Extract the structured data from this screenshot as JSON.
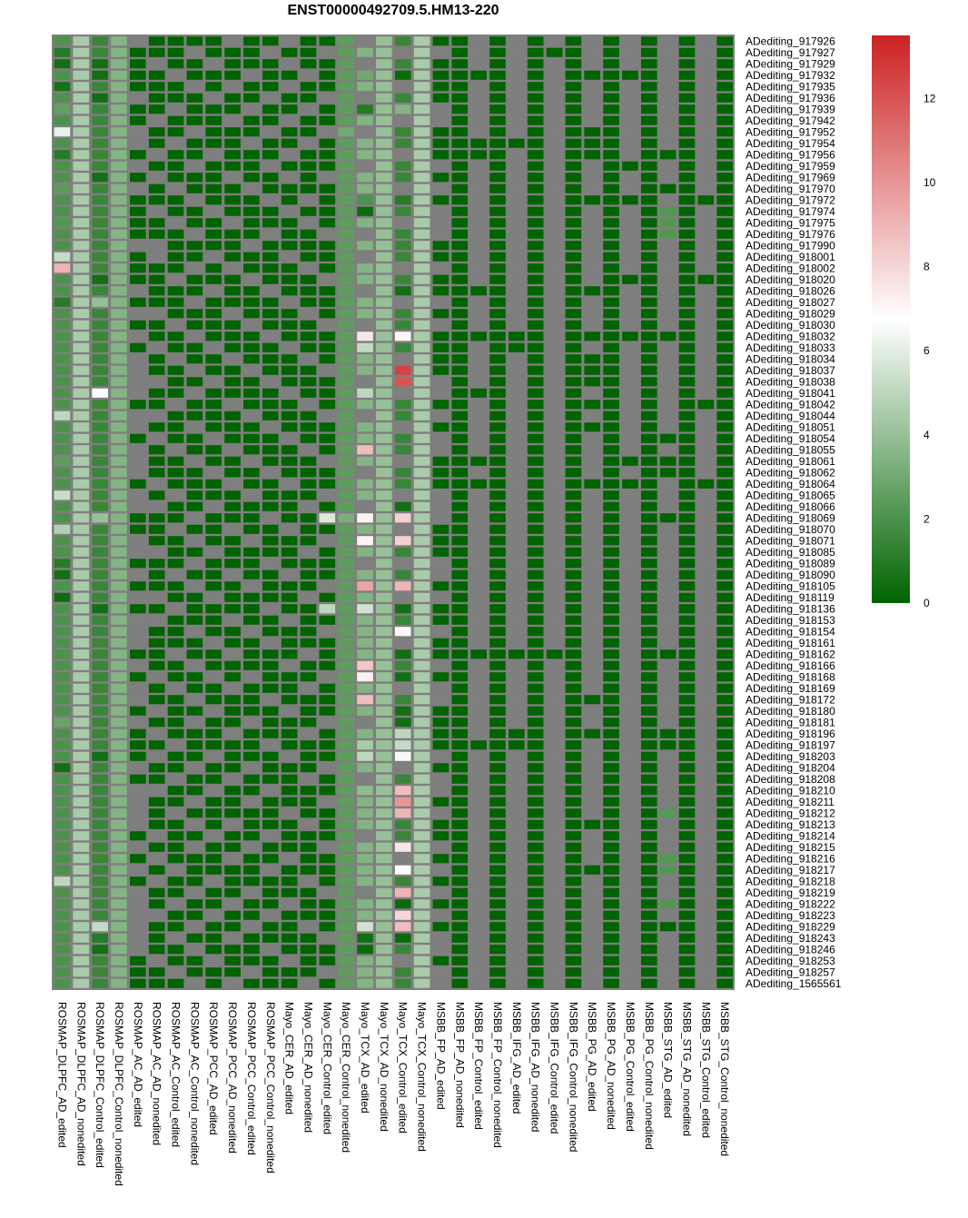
{
  "chart_data": {
    "type": "heatmap",
    "title": "ENST00000492709.5.HM13-220",
    "legend": {
      "position": "right",
      "min": 0,
      "max": 13.5,
      "ticks": [
        0,
        2,
        4,
        6,
        8,
        10,
        12
      ],
      "colors": [
        "#006400",
        "#ffffff",
        "#cc2222"
      ],
      "missing_color": "#7f7f7f"
    },
    "columns": [
      "ROSMAP_DLPFC_AD_edited",
      "ROSMAP_DLPFC_AD_nonedited",
      "ROSMAP_DLPFC_Control_edited",
      "ROSMAP_DLPFC_Control_nonedited",
      "ROSMAP_AC_AD_edited",
      "ROSMAP_AC_AD_nonedited",
      "ROSMAP_AC_Control_edited",
      "ROSMAP_AC_Control_nonedited",
      "ROSMAP_PCC_AD_edited",
      "ROSMAP_PCC_AD_nonedited",
      "ROSMAP_PCC_Control_edited",
      "ROSMAP_PCC_Control_nonedited",
      "Mayo_CER_AD_edited",
      "Mayo_CER_AD_nonedited",
      "Mayo_CER_Control_edited",
      "Mayo_CER_Control_nonedited",
      "Mayo_TCX_AD_edited",
      "Mayo_TCX_AD_nonedited",
      "Mayo_TCX_Control_edited",
      "Mayo_TCX_Control_nonedited",
      "MSBB_FP_AD_edited",
      "MSBB_FP_AD_nonedited",
      "MSBB_FP_Control_edited",
      "MSBB_FP_Control_nonedited",
      "MSBB_IFG_AD_edited",
      "MSBB_IFG_AD_nonedited",
      "MSBB_IFG_Control_edited",
      "MSBB_IFG_Control_nonedited",
      "MSBB_PG_AD_edited",
      "MSBB_PG_AD_nonedited",
      "MSBB_PG_Control_edited",
      "MSBB_PG_Control_nonedited",
      "MSBB_STG_AD_edited",
      "MSBB_STG_AD_nonedited",
      "MSBB_STG_Control_edited",
      "MSBB_STG_Control_nonedited"
    ],
    "rows": [
      "ADediting_917926",
      "ADediting_917927",
      "ADediting_917929",
      "ADediting_917932",
      "ADediting_917935",
      "ADediting_917936",
      "ADediting_917939",
      "ADediting_917942",
      "ADediting_917952",
      "ADediting_917954",
      "ADediting_917956",
      "ADediting_917959",
      "ADediting_917969",
      "ADediting_917970",
      "ADediting_917972",
      "ADediting_917974",
      "ADediting_917975",
      "ADediting_917976",
      "ADediting_917990",
      "ADediting_918001",
      "ADediting_918002",
      "ADediting_918020",
      "ADediting_918026",
      "ADediting_918027",
      "ADediting_918029",
      "ADediting_918030",
      "ADediting_918032",
      "ADediting_918033",
      "ADediting_918034",
      "ADediting_918037",
      "ADediting_918038",
      "ADediting_918041",
      "ADediting_918042",
      "ADediting_918044",
      "ADediting_918051",
      "ADediting_918054",
      "ADediting_918055",
      "ADediting_918061",
      "ADediting_918062",
      "ADediting_918064",
      "ADediting_918065",
      "ADediting_918066",
      "ADediting_918069",
      "ADediting_918070",
      "ADediting_918071",
      "ADediting_918085",
      "ADediting_918089",
      "ADediting_918090",
      "ADediting_918105",
      "ADediting_918119",
      "ADediting_918136",
      "ADediting_918153",
      "ADediting_918154",
      "ADediting_918161",
      "ADediting_918162",
      "ADediting_918166",
      "ADediting_918168",
      "ADediting_918169",
      "ADediting_918172",
      "ADediting_918180",
      "ADediting_918181",
      "ADediting_918196",
      "ADediting_918197",
      "ADediting_918203",
      "ADediting_918204",
      "ADediting_918208",
      "ADediting_918210",
      "ADediting_918211",
      "ADediting_918212",
      "ADediting_918213",
      "ADediting_918214",
      "ADediting_918215",
      "ADediting_918216",
      "ADediting_918217",
      "ADediting_918218",
      "ADediting_918219",
      "ADediting_918222",
      "ADediting_918223",
      "ADediting_918229",
      "ADediting_918243",
      "ADediting_918246",
      "ADediting_918253",
      "ADediting_918257",
      "ADediting_1565561"
    ],
    "column_defaults": [
      2,
      4.5,
      1.5,
      3.5,
      0,
      0,
      0,
      0,
      0,
      0,
      0,
      0,
      0,
      0,
      0,
      2.5,
      3.5,
      4,
      1.5,
      4.5,
      null,
      0,
      null,
      0,
      null,
      0,
      null,
      0,
      null,
      0,
      null,
      0,
      null,
      0,
      null,
      0
    ],
    "missing_columns": {
      "4": [
        0,
        5,
        8,
        9,
        11,
        13,
        18,
        22,
        24,
        26,
        28,
        29,
        30,
        31,
        33,
        34,
        36,
        37,
        38,
        40,
        41,
        44,
        45,
        47,
        49,
        51,
        52,
        53,
        55,
        57,
        58,
        60,
        64,
        66,
        67,
        68,
        69,
        71,
        73,
        75,
        76,
        77,
        78,
        79,
        80
      ],
      "5": [
        2,
        7,
        10,
        12,
        15,
        18,
        19,
        24,
        27,
        30,
        33,
        35,
        39,
        41,
        45,
        49,
        51,
        56,
        59,
        61,
        63,
        66,
        70,
        72,
        74,
        77,
        81
      ],
      "6": [
        3,
        6,
        9,
        13,
        16,
        21,
        25,
        28,
        32,
        36,
        40,
        43,
        47,
        50,
        54,
        57,
        62,
        65,
        68,
        73,
        76,
        79,
        82
      ],
      "7": [
        1,
        4,
        8,
        11,
        14,
        17,
        20,
        23,
        26,
        29,
        31,
        34,
        37,
        42,
        44,
        46,
        48,
        52,
        55,
        58,
        60,
        64,
        67,
        69,
        71,
        75,
        78,
        80,
        83
      ],
      "8": [
        2,
        5,
        10,
        15,
        19,
        22,
        27,
        30,
        35,
        38,
        41,
        45,
        49,
        53,
        56,
        59,
        63,
        66,
        70,
        74,
        77,
        81
      ],
      "9": [
        0,
        4,
        7,
        12,
        16,
        20,
        24,
        28,
        32,
        36,
        39,
        43,
        47,
        51,
        54,
        57,
        61,
        65,
        69,
        72,
        76,
        79,
        83
      ],
      "10": [
        3,
        6,
        9,
        13,
        18,
        21,
        25,
        29,
        33,
        37,
        40,
        44,
        48,
        52,
        56,
        60,
        64,
        67,
        71,
        75,
        78,
        82
      ],
      "11": [
        1,
        5,
        8,
        11,
        14,
        17,
        22,
        26,
        30,
        34,
        38,
        42,
        46,
        50,
        53,
        58,
        62,
        66,
        70,
        73,
        77,
        80
      ],
      "12": [
        0,
        2,
        4,
        7,
        10,
        12,
        15,
        19,
        23,
        27,
        31,
        35,
        39,
        43,
        47,
        51,
        55,
        59,
        63,
        68,
        72,
        76,
        81
      ],
      "13": [
        3,
        6,
        9,
        14,
        16,
        20,
        24,
        28,
        32,
        36,
        41,
        45,
        49,
        54,
        57,
        61,
        65,
        69,
        74,
        78,
        83
      ],
      "14": [
        1,
        5,
        8,
        12,
        17,
        21,
        25,
        29,
        33,
        37,
        40,
        44,
        48,
        52,
        56,
        60,
        64,
        67,
        71,
        75,
        79,
        82
      ],
      "16": [
        0,
        2,
        5,
        8,
        11,
        14,
        17,
        19,
        22,
        25,
        30,
        33,
        38,
        41,
        46,
        50,
        55,
        60,
        65,
        70,
        75,
        80
      ],
      "18": [
        1,
        4,
        7,
        10,
        13,
        16,
        20,
        23,
        26,
        28,
        31,
        34,
        37,
        40,
        43,
        46,
        49,
        53,
        57,
        61,
        64,
        68,
        72,
        77,
        81
      ],
      "20": [
        13,
        16,
        20,
        25,
        30,
        36,
        42,
        47,
        52,
        58,
        63,
        68,
        74,
        79
      ],
      "21": [],
      "22": [
        0,
        1,
        2,
        4,
        5,
        6,
        7,
        8,
        9,
        10,
        11,
        12,
        13,
        14,
        15,
        17,
        18,
        19,
        20,
        21,
        23,
        24,
        25,
        26,
        28,
        29,
        30,
        31,
        32,
        33,
        34,
        35,
        36,
        38,
        39,
        40,
        41,
        42,
        43,
        44,
        45,
        46,
        47,
        48,
        49,
        50,
        51,
        52,
        53,
        55,
        56,
        57,
        58,
        59,
        60,
        61,
        62,
        63,
        64,
        65,
        66,
        67,
        68,
        69,
        70,
        71,
        72,
        73,
        74,
        75,
        76,
        77,
        78,
        79,
        80,
        81,
        82,
        83
      ],
      "24": [],
      "26": [],
      "28": [],
      "30": [],
      "32": [],
      "34": []
    },
    "sparse_columns": {
      "20": [
        0,
        2,
        3,
        4,
        5,
        8,
        9,
        10,
        12,
        14,
        18,
        19,
        21,
        22,
        24,
        26,
        27,
        28,
        29,
        32,
        34,
        37,
        38,
        39,
        43,
        44,
        45,
        48,
        50,
        51,
        53,
        54,
        56,
        59,
        60,
        61,
        62,
        64,
        67,
        69,
        70,
        72,
        74,
        76,
        78,
        81
      ],
      "22": [
        3,
        9,
        10,
        22,
        26,
        31,
        37,
        39,
        54,
        62
      ],
      "24": [
        9,
        26,
        27,
        54,
        61,
        62
      ],
      "26": [
        1,
        54
      ],
      "28": [
        3,
        8,
        9,
        10,
        14,
        22,
        26,
        28,
        29,
        30,
        32,
        34,
        39,
        58,
        61,
        69,
        73
      ],
      "30": [
        3,
        11,
        14,
        21,
        26,
        37,
        39
      ],
      "32": [
        10,
        13,
        15,
        16,
        17,
        26,
        35,
        37,
        38,
        42,
        54,
        61,
        62,
        68,
        72,
        73,
        76,
        78
      ],
      "34": [
        14,
        21,
        32,
        39
      ]
    },
    "special_values": [
      [
        8,
        0,
        6.2
      ],
      [
        19,
        0,
        5.2
      ],
      [
        20,
        0,
        9.0
      ],
      [
        33,
        0,
        5.0
      ],
      [
        40,
        0,
        5.3
      ],
      [
        43,
        0,
        4.7
      ],
      [
        74,
        0,
        5.0
      ],
      [
        1,
        0,
        1.0
      ],
      [
        2,
        0,
        0.5
      ],
      [
        4,
        0,
        0.6
      ],
      [
        6,
        0,
        2.6
      ],
      [
        10,
        0,
        1.0
      ],
      [
        13,
        0,
        2.4
      ],
      [
        16,
        0,
        2.2
      ],
      [
        23,
        0,
        1.0
      ],
      [
        37,
        0,
        2.5
      ],
      [
        46,
        0,
        1.0
      ],
      [
        47,
        0,
        0.5
      ],
      [
        49,
        0,
        0.4
      ],
      [
        64,
        0,
        0.5
      ],
      [
        60,
        0,
        2.8
      ],
      [
        23,
        2,
        4.0
      ],
      [
        31,
        2,
        6.8
      ],
      [
        42,
        2,
        4.0
      ],
      [
        78,
        2,
        5.2
      ],
      [
        79,
        2,
        1.0
      ],
      [
        2,
        2,
        0.5
      ],
      [
        3,
        2,
        0.5
      ],
      [
        5,
        2,
        0.5
      ],
      [
        12,
        2,
        0.5
      ],
      [
        21,
        2,
        0.5
      ],
      [
        50,
        2,
        0.5
      ],
      [
        63,
        2,
        0.5
      ],
      [
        80,
        2,
        0.5
      ],
      [
        42,
        14,
        5.8
      ],
      [
        50,
        14,
        5.0
      ],
      [
        8,
        15,
        3.0
      ],
      [
        42,
        15,
        3.2
      ],
      [
        26,
        16,
        7.5
      ],
      [
        27,
        16,
        5.2
      ],
      [
        31,
        16,
        5.0
      ],
      [
        36,
        16,
        8.8
      ],
      [
        42,
        16,
        7.1
      ],
      [
        44,
        16,
        7.1
      ],
      [
        48,
        16,
        9.5
      ],
      [
        50,
        16,
        5.5
      ],
      [
        55,
        16,
        8.5
      ],
      [
        56,
        16,
        7.2
      ],
      [
        58,
        16,
        8.8
      ],
      [
        62,
        16,
        4.5
      ],
      [
        63,
        16,
        5.0
      ],
      [
        66,
        16,
        3.8
      ],
      [
        78,
        16,
        5.5
      ],
      [
        3,
        16,
        3.0
      ],
      [
        6,
        16,
        1.0
      ],
      [
        14,
        16,
        2.0
      ],
      [
        15,
        16,
        0.3
      ],
      [
        79,
        16,
        0.5
      ],
      [
        80,
        16,
        0.3
      ],
      [
        3,
        18,
        0.3
      ],
      [
        6,
        18,
        3.5
      ],
      [
        14,
        18,
        1.0
      ],
      [
        22,
        18,
        0.5
      ],
      [
        26,
        18,
        7.0
      ],
      [
        29,
        18,
        12.5
      ],
      [
        30,
        18,
        12.0
      ],
      [
        41,
        18,
        0.5
      ],
      [
        42,
        18,
        8.2
      ],
      [
        44,
        18,
        8.2
      ],
      [
        48,
        18,
        9.0
      ],
      [
        50,
        18,
        0.5
      ],
      [
        52,
        18,
        7.0
      ],
      [
        54,
        18,
        0.5
      ],
      [
        56,
        18,
        0.5
      ],
      [
        59,
        18,
        0.5
      ],
      [
        60,
        18,
        0.5
      ],
      [
        61,
        18,
        5.0
      ],
      [
        62,
        18,
        5.2
      ],
      [
        63,
        18,
        6.5
      ],
      [
        66,
        18,
        8.8
      ],
      [
        67,
        18,
        10.0
      ],
      [
        68,
        18,
        9.0
      ],
      [
        71,
        18,
        7.5
      ],
      [
        73,
        18,
        6.8
      ],
      [
        75,
        18,
        9.0
      ],
      [
        76,
        18,
        0.3
      ],
      [
        77,
        18,
        8.0
      ],
      [
        78,
        18,
        8.8
      ],
      [
        79,
        18,
        0.3
      ],
      [
        15,
        32,
        2.2
      ],
      [
        16,
        32,
        2.2
      ],
      [
        17,
        32,
        2.2
      ],
      [
        68,
        32,
        2.3
      ],
      [
        72,
        32,
        2.2
      ],
      [
        73,
        32,
        2.2
      ],
      [
        76,
        32,
        2.2
      ]
    ]
  }
}
